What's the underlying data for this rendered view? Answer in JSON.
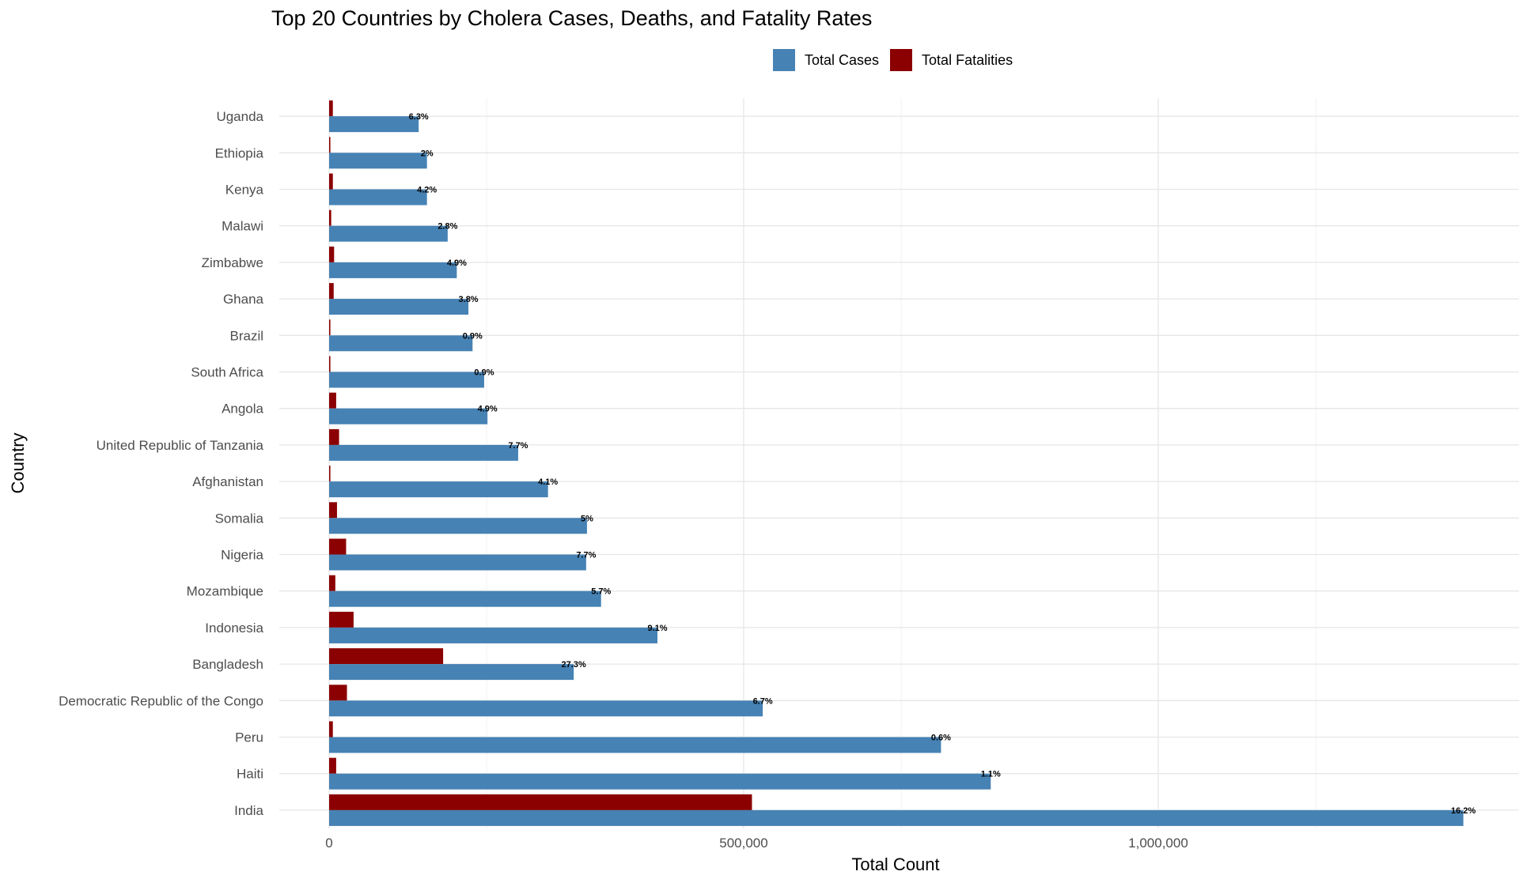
{
  "chart_data": {
    "type": "bar",
    "orientation": "horizontal",
    "title": "Top 20 Countries by Cholera Cases, Deaths, and Fatality Rates",
    "xlabel": "Total Count",
    "ylabel": "Country",
    "xlim": [
      -60000,
      1425000
    ],
    "x_ticks": [
      0,
      500000,
      1000000
    ],
    "x_tick_labels": [
      "0",
      "500,000",
      "1,000,000"
    ],
    "grid": true,
    "legend_position": "top",
    "categories": [
      "Uganda",
      "Ethiopia",
      "Kenya",
      "Malawi",
      "Zimbabwe",
      "Ghana",
      "Brazil",
      "South Africa",
      "Angola",
      "United Republic of Tanzania",
      "Afghanistan",
      "Somalia",
      "Nigeria",
      "Mozambique",
      "Indonesia",
      "Bangladesh",
      "Democratic Republic of the Congo",
      "Peru",
      "Haiti",
      "India"
    ],
    "series": [
      {
        "name": "Total Cases",
        "color": "#4682B4",
        "values": [
          108000,
          118000,
          118000,
          143000,
          154000,
          168000,
          173000,
          187000,
          191000,
          228000,
          264000,
          311000,
          310000,
          328000,
          396000,
          295000,
          523000,
          738000,
          798000,
          1368000
        ]
      },
      {
        "name": "Total Fatalities",
        "color": "#8B0000",
        "values": [
          4500,
          1500,
          4500,
          2500,
          6000,
          5500,
          1500,
          1500,
          8500,
          12000,
          1500,
          9500,
          20500,
          7500,
          29500,
          137500,
          21500,
          4500,
          8500,
          510000
        ]
      }
    ],
    "rate_labels": [
      "6.3%",
      "2%",
      "4.2%",
      "2.8%",
      "4.9%",
      "3.8%",
      "0.9%",
      "0.9%",
      "4.9%",
      "7.7%",
      "4.1%",
      "5%",
      "7.7%",
      "5.7%",
      "9.1%",
      "27.3%",
      "6.7%",
      "0.6%",
      "1.1%",
      "16.2%"
    ]
  }
}
